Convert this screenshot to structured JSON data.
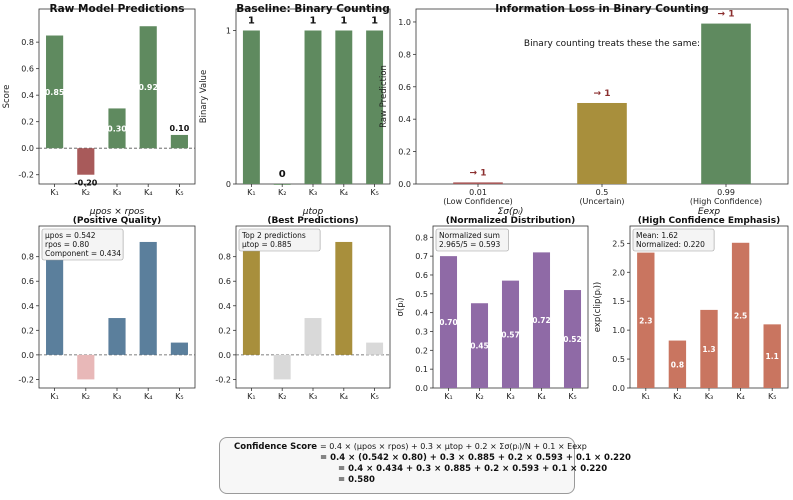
{
  "chart_data": [
    {
      "id": "raw",
      "type": "bar",
      "title": "Raw Model Predictions",
      "ylabel": "Score",
      "categories": [
        "K₁",
        "K₂",
        "K₃",
        "K₄",
        "K₅"
      ],
      "values": [
        0.85,
        -0.2,
        0.3,
        0.92,
        0.1
      ],
      "value_labels": [
        "0.85",
        "-0.20",
        "0.30",
        "0.92",
        "0.10"
      ],
      "colors": [
        "#5f8a5f",
        "#a85a5a",
        "#5f8a5f",
        "#5f8a5f",
        "#5f8a5f"
      ],
      "ylim": [
        -0.27,
        1.05
      ],
      "yticks": [
        "-0.2",
        "0.0",
        "0.2",
        "0.4",
        "0.6",
        "0.8"
      ],
      "ytick_values": [
        -0.2,
        0,
        0.2,
        0.4,
        0.6,
        0.8
      ]
    },
    {
      "id": "binary",
      "type": "bar",
      "title": "Baseline: Binary Counting",
      "ylabel": "Binary Value",
      "categories": [
        "K₁",
        "K₂",
        "K₃",
        "K₄",
        "K₅"
      ],
      "values": [
        1,
        0,
        1,
        1,
        1
      ],
      "value_labels": [
        "1",
        "0",
        "1",
        "1",
        "1"
      ],
      "colors": [
        "#5f8a5f",
        "#5f8a5f",
        "#5f8a5f",
        "#5f8a5f",
        "#5f8a5f"
      ],
      "ylim": [
        0,
        1.14
      ],
      "yticks": [
        "0",
        "1"
      ],
      "ytick_values": [
        0,
        1
      ]
    },
    {
      "id": "infoloss",
      "type": "bar",
      "title": "Information Loss in Binary Counting",
      "ylabel": "Raw Prediction",
      "annotation": "Binary counting treats these the same:",
      "categories": [
        "0.01",
        "0.5",
        "0.99"
      ],
      "sublabels": [
        "(Low Confidence)",
        "(Uncertain)",
        "(High Confidence)"
      ],
      "values": [
        0.01,
        0.5,
        0.99
      ],
      "arrow_labels": [
        "→ 1",
        "→ 1",
        "→ 1"
      ],
      "colors": [
        "#a85a5a",
        "#a88f3c",
        "#5f8a5f"
      ],
      "ylim": [
        0,
        1.08
      ],
      "yticks": [
        "0.0",
        "0.2",
        "0.4",
        "0.6",
        "0.8",
        "1.0"
      ],
      "ytick_values": [
        0,
        0.2,
        0.4,
        0.6,
        0.8,
        1.0
      ]
    },
    {
      "id": "pos",
      "type": "bar",
      "title_math": "μpos × rpos",
      "title": "(Positive Quality)",
      "categories": [
        "K₁",
        "K₂",
        "K₃",
        "K₄",
        "K₅"
      ],
      "values": [
        0.85,
        -0.2,
        0.3,
        0.92,
        0.1
      ],
      "colors": [
        "#5b7f9c",
        "#e8b8b8",
        "#5b7f9c",
        "#5b7f9c",
        "#5b7f9c"
      ],
      "legend": [
        "μpos = 0.542",
        "rpos = 0.80",
        "Component = 0.434"
      ],
      "ylim": [
        -0.27,
        1.05
      ],
      "yticks": [
        "-0.2",
        "0.0",
        "0.2",
        "0.4",
        "0.6",
        "0.8"
      ],
      "ytick_values": [
        -0.2,
        0,
        0.2,
        0.4,
        0.6,
        0.8
      ]
    },
    {
      "id": "top",
      "type": "bar",
      "title_math": "μtop",
      "title": "(Best Predictions)",
      "categories": [
        "K₁",
        "K₂",
        "K₃",
        "K₄",
        "K₅"
      ],
      "values": [
        0.85,
        -0.2,
        0.3,
        0.92,
        0.1
      ],
      "colors": [
        "#a88f3c",
        "#d9d9d9",
        "#d9d9d9",
        "#a88f3c",
        "#d9d9d9"
      ],
      "legend": [
        "Top 2 predictions",
        "μtop = 0.885"
      ],
      "ylim": [
        -0.27,
        1.05
      ],
      "yticks": [
        "-0.2",
        "0.0",
        "0.2",
        "0.4",
        "0.6",
        "0.8"
      ],
      "ytick_values": [
        -0.2,
        0,
        0.2,
        0.4,
        0.6,
        0.8
      ]
    },
    {
      "id": "norm",
      "type": "bar",
      "title_math": "Σσ(pᵢ)",
      "title": "(Normalized Distribution)",
      "ylabel": "σ(pᵢ)",
      "categories": [
        "K₁",
        "K₂",
        "K₃",
        "K₄",
        "K₅"
      ],
      "values": [
        0.7,
        0.45,
        0.57,
        0.72,
        0.52
      ],
      "value_labels": [
        "0.70",
        "0.45",
        "0.57",
        "0.72",
        "0.52"
      ],
      "colors": [
        "#8f6aa6",
        "#8f6aa6",
        "#8f6aa6",
        "#8f6aa6",
        "#8f6aa6"
      ],
      "legend": [
        "Normalized sum",
        "2.965/5 = 0.593"
      ],
      "ylim": [
        0,
        0.86
      ],
      "yticks": [
        "0.0",
        "0.1",
        "0.2",
        "0.3",
        "0.4",
        "0.5",
        "0.6",
        "0.7",
        "0.8"
      ],
      "ytick_values": [
        0,
        0.1,
        0.2,
        0.3,
        0.4,
        0.5,
        0.6,
        0.7,
        0.8
      ]
    },
    {
      "id": "exp",
      "type": "bar",
      "title_math": "Eexp",
      "title": "(High Confidence Emphasis)",
      "ylabel": "exp(clip(pᵢ))",
      "categories": [
        "K₁",
        "K₂",
        "K₃",
        "K₄",
        "K₅"
      ],
      "values": [
        2.34,
        0.82,
        1.35,
        2.51,
        1.1
      ],
      "value_labels": [
        "2.3",
        "0.8",
        "1.3",
        "2.5",
        "1.1"
      ],
      "colors": [
        "#c97560",
        "#c97560",
        "#c97560",
        "#c97560",
        "#c97560"
      ],
      "legend": [
        "Mean: 1.62",
        "Normalized: 0.220"
      ],
      "ylim": [
        0,
        2.8
      ],
      "yticks": [
        "0.0",
        "0.5",
        "1.0",
        "1.5",
        "2.0",
        "2.5"
      ],
      "ytick_values": [
        0,
        0.5,
        1.0,
        1.5,
        2.0,
        2.5
      ]
    }
  ],
  "formula": {
    "label": "Confidence Score",
    "expression": "= 0.4 × (μpos × rpos) + 0.3 × μtop + 0.2 × Σσ(pᵢ)/N + 0.1 × Eexp",
    "line2": "= 0.4 × (0.542 × 0.80) + 0.3 × 0.885 + 0.2 × 0.593 + 0.1 × 0.220",
    "line3": "= 0.4 × 0.434 + 0.3 × 0.885 + 0.2 × 0.593 + 0.1 × 0.220",
    "line4": "= 0.580"
  }
}
